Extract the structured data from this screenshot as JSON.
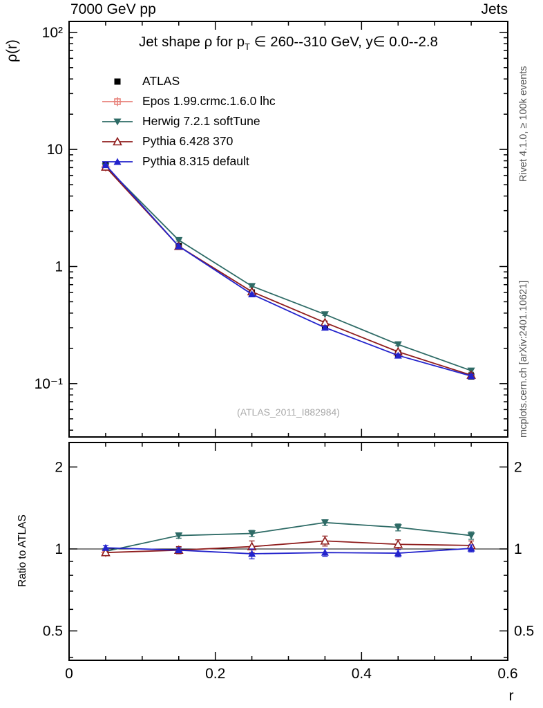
{
  "header": {
    "left": "7000 GeV pp",
    "right": "Jets"
  },
  "side_notes": {
    "right_top": "Rivet 4.1.0, ≥ 100k events",
    "right_bottom": "mcplots.cern.ch [arXiv:2401.10621]"
  },
  "watermark": "(ATLAS_2011_I882984)",
  "title": {
    "part1": "Jet shape ρ for p",
    "sub": "T",
    "part2": " ∈ 260--310 GeV, y∈ 0.0--2.8"
  },
  "axis_labels": {
    "y_main": "ρ(r)",
    "y_ratio": "Ratio to ATLAS",
    "x": "r"
  },
  "chart_data": {
    "type": "line",
    "title": "Jet shape ρ for p_T ∈ 260--310 GeV, y ∈ 0.0--2.8",
    "xlabel": "r",
    "ylabel_main": "ρ(r)",
    "ylabel_ratio": "Ratio to ATLAS",
    "legend_position": "top-left-inside",
    "grid": false,
    "x": [
      0.05,
      0.15,
      0.25,
      0.35,
      0.45,
      0.55
    ],
    "xlim": [
      0,
      0.6
    ],
    "x_major_ticks": [
      0,
      0.2,
      0.4,
      0.6
    ],
    "x_minor_step": 0.05,
    "main": {
      "yscale": "log",
      "ylim": [
        0.035,
        124
      ],
      "yticks": [
        {
          "v": 100,
          "label": "10²"
        },
        {
          "v": 10,
          "label": "10"
        },
        {
          "v": 1,
          "label": "1"
        },
        {
          "v": 0.1,
          "label": "10⁻¹"
        }
      ]
    },
    "ratio": {
      "yscale": "log",
      "ylim": [
        0.39,
        2.46
      ],
      "refline": 1,
      "yticks": [
        {
          "v": 2,
          "label": "2"
        },
        {
          "v": 1,
          "label": "1"
        },
        {
          "v": 0.5,
          "label": "0.5"
        }
      ]
    },
    "series": [
      {
        "label": "ATLAS",
        "color": "#000000",
        "marker": "square-filled",
        "line": false,
        "values": [
          7.3,
          1.5,
          0.6,
          0.31,
          0.18,
          0.115
        ],
        "errors": [
          0.18,
          0.04,
          0.015,
          0.009,
          0.005,
          0.004
        ],
        "ratio": null
      },
      {
        "label": "Epos 1.99.crmc.1.6.0 lhc",
        "color": "#e8837c",
        "marker": "cross-square-open",
        "line": true,
        "values": [
          7.08,
          null,
          null,
          null,
          null,
          null
        ],
        "errors": [
          0.15,
          null,
          null,
          null,
          null,
          null
        ],
        "ratio": [
          0.97,
          null,
          null,
          null,
          null,
          null
        ],
        "ratio_errors": [
          0.02,
          null,
          null,
          null,
          null,
          null
        ]
      },
      {
        "label": "Herwig 7.2.1 softTune",
        "color": "#2e6b66",
        "marker": "triangle-down-filled",
        "line": true,
        "values": [
          7.15,
          1.68,
          0.68,
          0.39,
          0.216,
          0.129
        ],
        "errors": [
          0.1,
          0.03,
          0.012,
          0.008,
          0.005,
          0.004
        ],
        "ratio": [
          0.98,
          1.12,
          1.14,
          1.25,
          1.2,
          1.12
        ],
        "ratio_errors": [
          0.02,
          0.025,
          0.03,
          0.03,
          0.035,
          0.035
        ]
      },
      {
        "label": "Pythia 6.428 370",
        "color": "#8f1d1d",
        "marker": "triangle-up-open",
        "line": true,
        "values": [
          7.08,
          1.49,
          0.61,
          0.332,
          0.187,
          0.118
        ],
        "errors": [
          0.1,
          0.03,
          0.015,
          0.01,
          0.006,
          0.005
        ],
        "ratio": [
          0.97,
          0.99,
          1.02,
          1.07,
          1.04,
          1.03
        ],
        "ratio_errors": [
          0.02,
          0.03,
          0.05,
          0.045,
          0.04,
          0.04
        ]
      },
      {
        "label": "Pythia 8.315 default",
        "color": "#2323cc",
        "marker": "triangle-up-filled",
        "line": true,
        "values": [
          7.37,
          1.49,
          0.58,
          0.301,
          0.174,
          0.116
        ],
        "errors": [
          0.1,
          0.03,
          0.012,
          0.008,
          0.005,
          0.004
        ],
        "ratio": [
          1.01,
          0.99,
          0.96,
          0.97,
          0.965,
          1.005
        ],
        "ratio_errors": [
          0.02,
          0.02,
          0.04,
          0.03,
          0.03,
          0.03
        ]
      }
    ]
  }
}
